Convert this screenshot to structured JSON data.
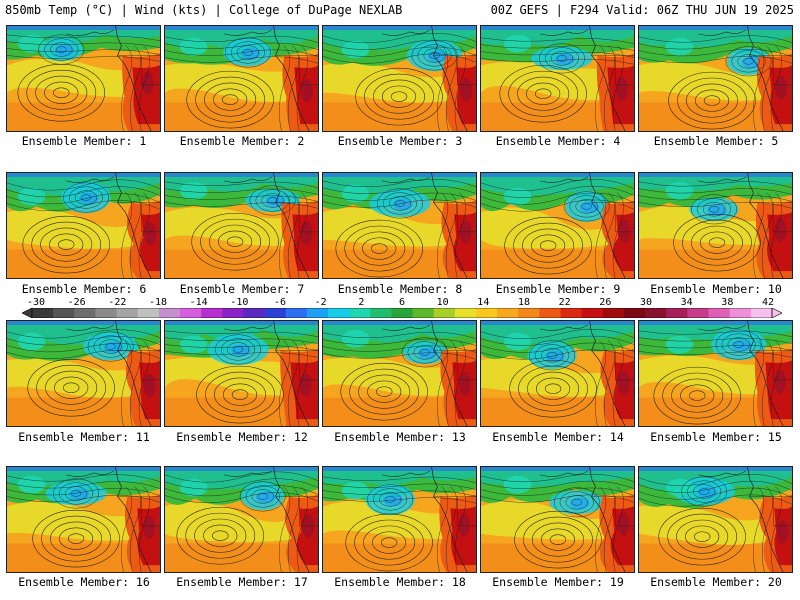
{
  "header": {
    "left": "850mb Temp (°C) | Wind (kts) | College of DuPage NEXLAB",
    "right": "00Z GEFS | F294 Valid: 06Z THU JUN 19 2025"
  },
  "panels": [
    {
      "label": "Ensemble Member: 1"
    },
    {
      "label": "Ensemble Member: 2"
    },
    {
      "label": "Ensemble Member: 3"
    },
    {
      "label": "Ensemble Member: 4"
    },
    {
      "label": "Ensemble Member: 5"
    },
    {
      "label": "Ensemble Member: 6"
    },
    {
      "label": "Ensemble Member: 7"
    },
    {
      "label": "Ensemble Member: 8"
    },
    {
      "label": "Ensemble Member: 9"
    },
    {
      "label": "Ensemble Member: 10"
    },
    {
      "label": "Ensemble Member: 11"
    },
    {
      "label": "Ensemble Member: 12"
    },
    {
      "label": "Ensemble Member: 13"
    },
    {
      "label": "Ensemble Member: 14"
    },
    {
      "label": "Ensemble Member: 15"
    },
    {
      "label": "Ensemble Member: 16"
    },
    {
      "label": "Ensemble Member: 17"
    },
    {
      "label": "Ensemble Member: 18"
    },
    {
      "label": "Ensemble Member: 19"
    },
    {
      "label": "Ensemble Member: 20"
    }
  ],
  "colorbar": {
    "ticks": [
      "-30",
      "-26",
      "-22",
      "-18",
      "-14",
      "-10",
      "-6",
      "-2",
      "2",
      "6",
      "10",
      "14",
      "18",
      "22",
      "26",
      "30",
      "34",
      "38",
      "42"
    ],
    "colors": [
      "#3a3a3a",
      "#555555",
      "#6e6e6e",
      "#8a8a8a",
      "#a5a5a5",
      "#c0c0c0",
      "#c68fd0",
      "#d65fe0",
      "#b62fd0",
      "#8b22c8",
      "#5a2ac0",
      "#2d3fd6",
      "#2d6ff0",
      "#1ea0f5",
      "#19cdea",
      "#1fd6b0",
      "#1fbf6e",
      "#2aa53a",
      "#5fb82a",
      "#a8d02a",
      "#e8e02a",
      "#f8c81e",
      "#f8a81e",
      "#f3881a",
      "#ec5a14",
      "#dc2a10",
      "#c41010",
      "#a00c0c",
      "#7c0a14",
      "#8a1030",
      "#a8205a",
      "#c83a8a",
      "#e060b8",
      "#f090d8",
      "#f8c0ec"
    ]
  }
}
